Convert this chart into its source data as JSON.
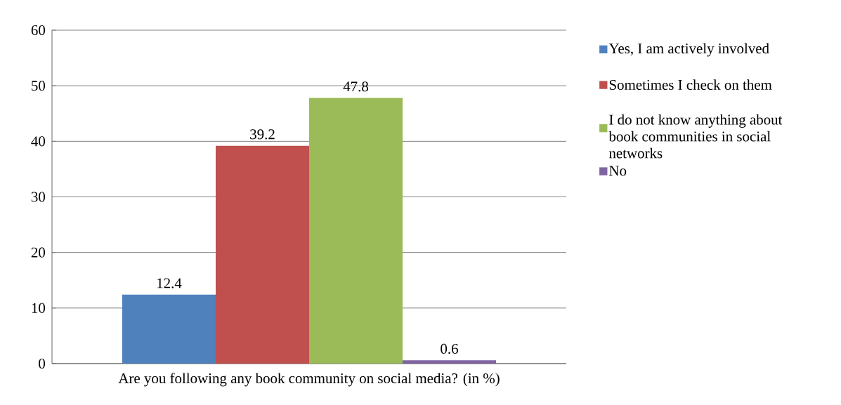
{
  "chart_data": {
    "type": "bar",
    "categories": [
      "Are you following any book community on social media? (in %)"
    ],
    "series": [
      {
        "name": "Yes, I am actively involved",
        "color": "#4f81bd",
        "values": [
          12.4
        ]
      },
      {
        "name": "Sometimes I check on them",
        "color": "#c0504d",
        "values": [
          39.2
        ]
      },
      {
        "name": "I do not know anything about book communities in social networks",
        "color": "#9bbb59",
        "values": [
          47.8
        ]
      },
      {
        "name": "No",
        "color": "#8064a2",
        "values": [
          0.6
        ]
      }
    ],
    "ylim": [
      0,
      60
    ],
    "yticks": [
      0,
      10,
      20,
      30,
      40,
      50,
      60
    ],
    "grid": "y",
    "legend": "right",
    "data_labels": true
  }
}
